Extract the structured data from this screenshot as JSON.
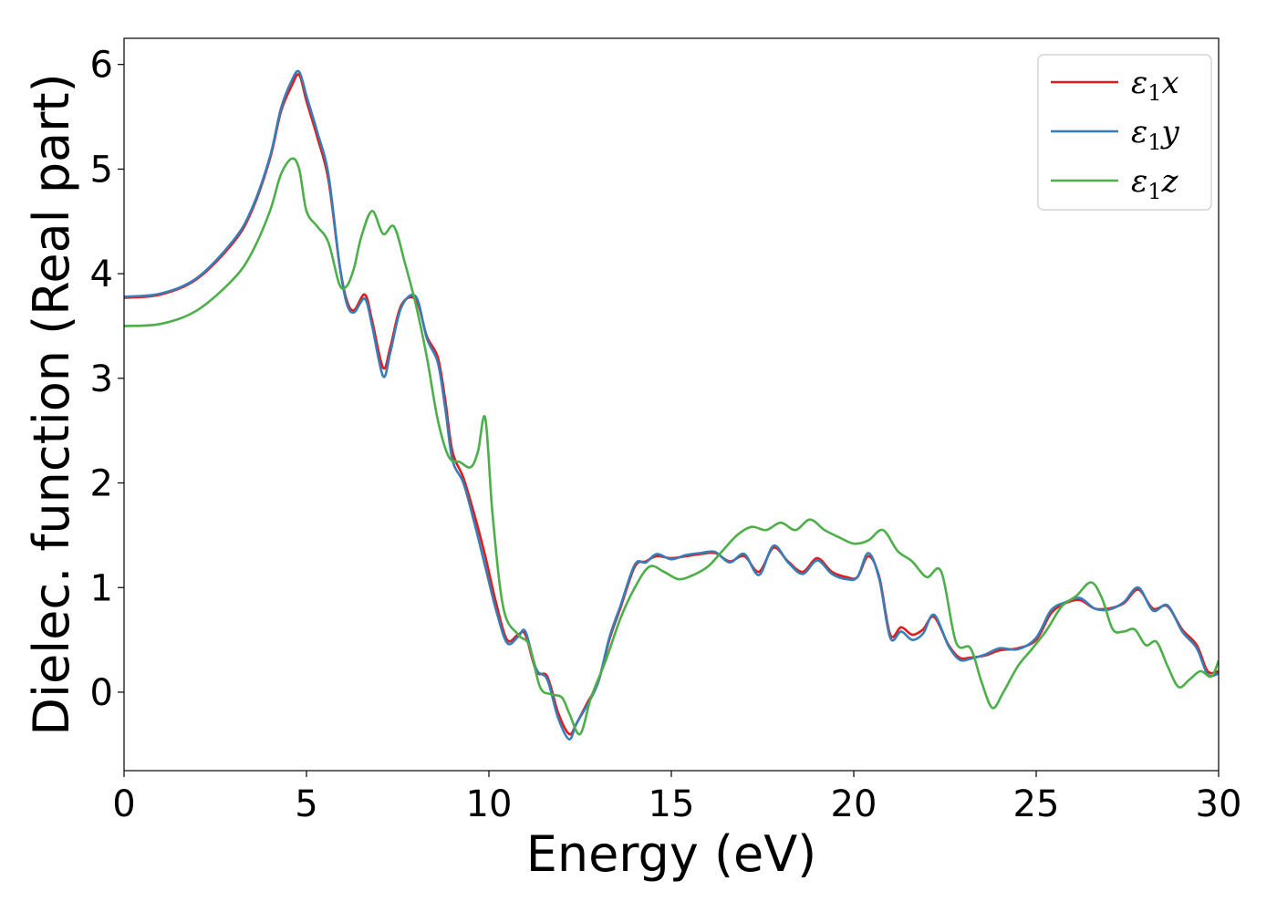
{
  "chart_data": {
    "type": "line",
    "title": "",
    "xlabel": "Energy (eV)",
    "ylabel": "Dielec. function (Real part)",
    "xlim": [
      0,
      30
    ],
    "ylim": [
      -0.75,
      6.25
    ],
    "xticks": [
      "0",
      "5",
      "10",
      "15",
      "20",
      "25",
      "30"
    ],
    "yticks": [
      "0",
      "1",
      "2",
      "3",
      "4",
      "5",
      "6"
    ],
    "grid": false,
    "legend_position": "top-right",
    "series": [
      {
        "name_symbol": "ε",
        "name_sub": "1",
        "name_axis": "x",
        "color": "#e41a1c",
        "x": [
          0,
          1,
          2,
          3,
          3.5,
          4,
          4.3,
          4.6,
          4.8,
          5,
          5.3,
          5.6,
          5.9,
          6.1,
          6.3,
          6.6,
          6.8,
          7.1,
          7.3,
          7.6,
          8,
          8.3,
          8.6,
          8.8,
          9,
          9.3,
          9.6,
          9.9,
          10.2,
          10.5,
          10.8,
          11,
          11.3,
          11.6,
          11.9,
          12.2,
          12.4,
          12.7,
          13,
          13.3,
          13.6,
          14,
          14.3,
          14.6,
          15,
          15.4,
          15.8,
          16.2,
          16.6,
          17,
          17.4,
          17.8,
          18.2,
          18.6,
          19,
          19.4,
          19.8,
          20.1,
          20.4,
          20.7,
          21,
          21.3,
          21.6,
          21.9,
          22.2,
          22.6,
          22.9,
          23.2,
          23.6,
          24,
          24.5,
          25,
          25.4,
          25.8,
          26.2,
          26.6,
          27,
          27.4,
          27.8,
          28.2,
          28.6,
          29,
          29.4,
          29.7,
          30
        ],
        "y": [
          3.77,
          3.8,
          3.95,
          4.3,
          4.6,
          5.1,
          5.55,
          5.8,
          5.9,
          5.65,
          5.3,
          4.9,
          4.1,
          3.75,
          3.65,
          3.8,
          3.55,
          3.1,
          3.3,
          3.7,
          3.75,
          3.4,
          3.2,
          2.8,
          2.3,
          2.05,
          1.7,
          1.3,
          0.85,
          0.5,
          0.55,
          0.55,
          0.2,
          0.15,
          -0.2,
          -0.4,
          -0.3,
          -0.1,
          0.1,
          0.5,
          0.8,
          1.2,
          1.25,
          1.3,
          1.28,
          1.3,
          1.32,
          1.33,
          1.25,
          1.3,
          1.15,
          1.38,
          1.25,
          1.15,
          1.28,
          1.15,
          1.1,
          1.1,
          1.3,
          1.1,
          0.55,
          0.62,
          0.55,
          0.6,
          0.72,
          0.45,
          0.33,
          0.33,
          0.35,
          0.4,
          0.42,
          0.5,
          0.75,
          0.85,
          0.88,
          0.8,
          0.8,
          0.85,
          0.98,
          0.8,
          0.82,
          0.6,
          0.45,
          0.2,
          0.2
        ]
      },
      {
        "name_symbol": "ε",
        "name_sub": "1",
        "name_axis": "y",
        "color": "#377eb8",
        "x": [
          0,
          1,
          2,
          3,
          3.5,
          4,
          4.3,
          4.6,
          4.8,
          5,
          5.3,
          5.6,
          5.9,
          6.1,
          6.3,
          6.6,
          6.8,
          7.1,
          7.3,
          7.6,
          8,
          8.3,
          8.6,
          8.8,
          9,
          9.3,
          9.6,
          9.9,
          10.2,
          10.5,
          10.8,
          11,
          11.3,
          11.6,
          11.9,
          12.2,
          12.4,
          12.7,
          13,
          13.3,
          13.6,
          14,
          14.3,
          14.6,
          15,
          15.4,
          15.8,
          16.2,
          16.6,
          17,
          17.4,
          17.8,
          18.2,
          18.6,
          19,
          19.4,
          19.8,
          20.1,
          20.4,
          20.7,
          21,
          21.3,
          21.6,
          21.9,
          22.2,
          22.6,
          22.9,
          23.2,
          23.6,
          24,
          24.5,
          25,
          25.4,
          25.8,
          26.2,
          26.6,
          27,
          27.4,
          27.8,
          28.2,
          28.6,
          29,
          29.4,
          29.7,
          30
        ],
        "y": [
          3.78,
          3.81,
          3.96,
          4.32,
          4.62,
          5.12,
          5.58,
          5.85,
          5.93,
          5.7,
          5.35,
          4.95,
          4.1,
          3.72,
          3.63,
          3.76,
          3.5,
          3.02,
          3.25,
          3.68,
          3.78,
          3.38,
          3.15,
          2.72,
          2.22,
          2.0,
          1.62,
          1.2,
          0.78,
          0.47,
          0.53,
          0.58,
          0.22,
          0.12,
          -0.25,
          -0.45,
          -0.3,
          -0.12,
          0.1,
          0.52,
          0.82,
          1.22,
          1.24,
          1.32,
          1.27,
          1.31,
          1.33,
          1.34,
          1.24,
          1.32,
          1.12,
          1.4,
          1.24,
          1.13,
          1.26,
          1.13,
          1.08,
          1.1,
          1.33,
          1.08,
          0.52,
          0.58,
          0.5,
          0.56,
          0.74,
          0.44,
          0.31,
          0.32,
          0.36,
          0.42,
          0.41,
          0.52,
          0.78,
          0.86,
          0.9,
          0.8,
          0.79,
          0.86,
          1.0,
          0.78,
          0.83,
          0.58,
          0.42,
          0.17,
          0.18
        ]
      },
      {
        "name_symbol": "ε",
        "name_sub": "1",
        "name_axis": "z",
        "color": "#4daf4a",
        "x": [
          0,
          1,
          2,
          3,
          3.5,
          4,
          4.3,
          4.6,
          4.8,
          5,
          5.3,
          5.6,
          5.9,
          6.1,
          6.3,
          6.5,
          6.8,
          7.1,
          7.4,
          7.7,
          8,
          8.3,
          8.6,
          8.9,
          9.2,
          9.5,
          9.7,
          9.9,
          10.1,
          10.4,
          10.8,
          11.1,
          11.4,
          11.7,
          12,
          12.2,
          12.5,
          12.8,
          13.2,
          13.6,
          14,
          14.4,
          14.8,
          15.2,
          15.6,
          16,
          16.4,
          16.8,
          17.2,
          17.6,
          18,
          18.4,
          18.8,
          19.2,
          19.6,
          20,
          20.4,
          20.8,
          21.2,
          21.6,
          22,
          22.4,
          22.8,
          23.2,
          23.5,
          23.8,
          24.1,
          24.5,
          24.9,
          25.3,
          25.7,
          26.1,
          26.5,
          26.8,
          27.1,
          27.4,
          27.7,
          28,
          28.3,
          28.6,
          28.9,
          29.2,
          29.5,
          29.8,
          30
        ],
        "y": [
          3.5,
          3.52,
          3.65,
          3.95,
          4.2,
          4.6,
          4.95,
          5.1,
          5.0,
          4.6,
          4.45,
          4.3,
          3.9,
          3.88,
          4.05,
          4.35,
          4.6,
          4.38,
          4.45,
          4.1,
          3.7,
          3.2,
          2.6,
          2.25,
          2.2,
          2.15,
          2.3,
          2.62,
          1.7,
          0.8,
          0.55,
          0.45,
          0.05,
          -0.02,
          -0.05,
          -0.2,
          -0.4,
          -0.05,
          0.3,
          0.7,
          1.0,
          1.2,
          1.15,
          1.08,
          1.12,
          1.2,
          1.35,
          1.5,
          1.58,
          1.55,
          1.62,
          1.55,
          1.65,
          1.55,
          1.48,
          1.42,
          1.45,
          1.55,
          1.35,
          1.25,
          1.1,
          1.15,
          0.48,
          0.42,
          0.1,
          -0.15,
          0.0,
          0.25,
          0.42,
          0.6,
          0.82,
          0.92,
          1.05,
          0.9,
          0.6,
          0.58,
          0.6,
          0.45,
          0.48,
          0.25,
          0.05,
          0.12,
          0.2,
          0.15,
          0.3
        ]
      }
    ]
  }
}
